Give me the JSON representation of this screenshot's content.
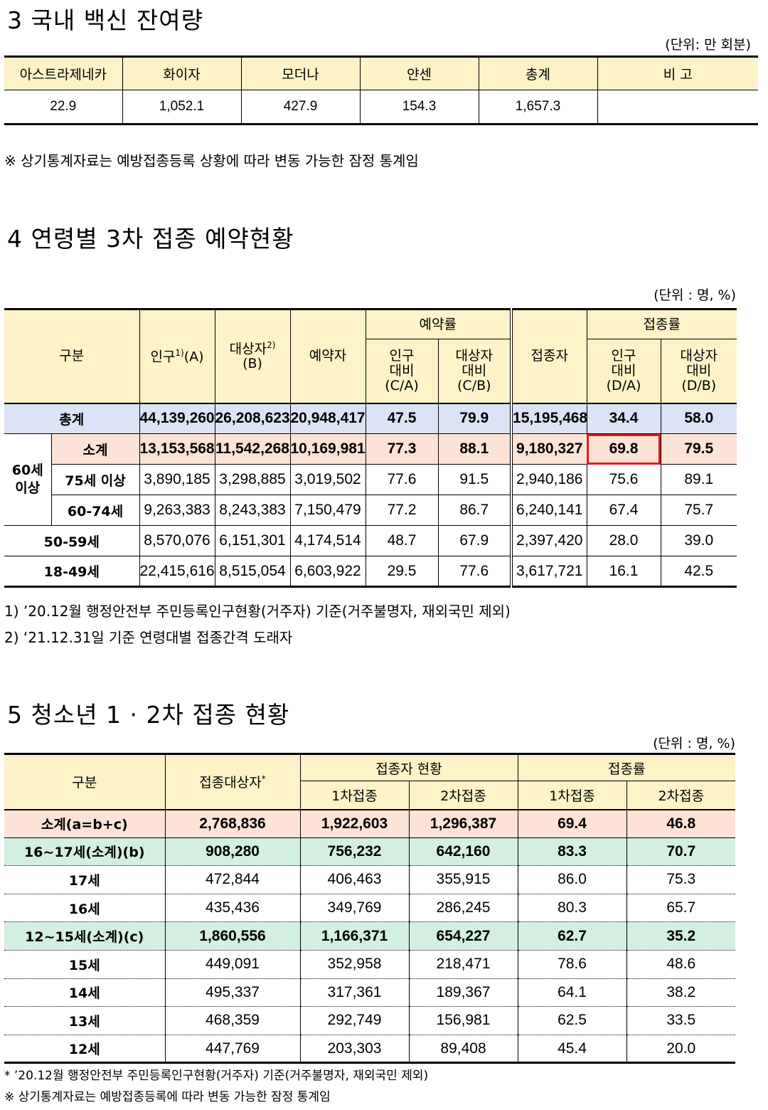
{
  "sec3": {
    "title": "3  국내 백신 잔여량",
    "unit": "(단위: 만 회분)",
    "headers": [
      "아스트라제네카",
      "화이자",
      "모더나",
      "얀센",
      "총계",
      "비 고"
    ],
    "values": [
      "22.9",
      "1,052.1",
      "427.9",
      "154.3",
      "1,657.3",
      ""
    ],
    "note": "※ 상기통계자료는 예방접종등록 상황에 따라 변동 가능한 잠정 통계임"
  },
  "sec4": {
    "title": "4  연령별 3차 접종 예약현황",
    "unit": "(단위 : 명, %)",
    "headers": {
      "gubun": "구분",
      "pop": "인구",
      "pop_sup": "1)",
      "pop_suffix": "(A)",
      "target": "대상자",
      "target_sup": "2)",
      "target_suffix": "(B)",
      "reserved": "예약자",
      "resv_rate": "예약률",
      "resv_pop_1": "인구",
      "resv_pop_2": "대비",
      "resv_pop_3": "(C/A)",
      "resv_tgt_1": "대상자",
      "resv_tgt_2": "대비",
      "resv_tgt_3": "(C/B)",
      "vaccinated": "접종자",
      "vax_rate": "접종률",
      "vax_pop_1": "인구",
      "vax_pop_2": "대비",
      "vax_pop_3": "(D/A)",
      "vax_tgt_1": "대상자",
      "vax_tgt_2": "대비",
      "vax_tgt_3": "(D/B)"
    },
    "group_60_1": "60세",
    "group_60_2": "이상",
    "rows": [
      {
        "label": "총계",
        "v": [
          "44,139,260",
          "26,208,623",
          "20,948,417",
          "47.5",
          "79.9",
          "15,195,468",
          "34.4",
          "58.0"
        ]
      },
      {
        "label": "소계",
        "v": [
          "13,153,568",
          "11,542,268",
          "10,169,981",
          "77.3",
          "88.1",
          "9,180,327",
          "69.8",
          "79.5"
        ]
      },
      {
        "label": "75세 이상",
        "v": [
          "3,890,185",
          "3,298,885",
          "3,019,502",
          "77.6",
          "91.5",
          "2,940,186",
          "75.6",
          "89.1"
        ]
      },
      {
        "label": "60-74세",
        "v": [
          "9,263,383",
          "8,243,383",
          "7,150,479",
          "77.2",
          "86.7",
          "6,240,141",
          "67.4",
          "75.7"
        ]
      },
      {
        "label": "50-59세",
        "v": [
          "8,570,076",
          "6,151,301",
          "4,174,514",
          "48.7",
          "67.9",
          "2,397,420",
          "28.0",
          "39.0"
        ]
      },
      {
        "label": "18-49세",
        "v": [
          "22,415,616",
          "8,515,054",
          "6,603,922",
          "29.5",
          "77.6",
          "3,617,721",
          "16.1",
          "42.5"
        ]
      }
    ],
    "note1": "1) ’20.12월 행정안전부 주민등록인구현황(거주자) 기준(거주불명자, 재외국민 제외)",
    "note2": "2) ‘21.12.31일 기준 연령대별 접종간격 도래자"
  },
  "sec5": {
    "title": "5  청소년 1 · 2차 접종 현황",
    "unit": "(단위 : 명, %)",
    "headers": {
      "gubun": "구분",
      "target": "접종대상자",
      "target_sup": "*",
      "status": "접종자 현황",
      "rate": "접종률",
      "d1": "1차접종",
      "d2": "2차접종",
      "r1": "1차접종",
      "r2": "2차접종"
    },
    "rows": [
      {
        "label": "소계(a=b+c)",
        "v": [
          "2,768,836",
          "1,922,603",
          "1,296,387",
          "69.4",
          "46.8"
        ]
      },
      {
        "label": "16~17세(소계)(b)",
        "v": [
          "908,280",
          "756,232",
          "642,160",
          "83.3",
          "70.7"
        ]
      },
      {
        "label": "17세",
        "v": [
          "472,844",
          "406,463",
          "355,915",
          "86.0",
          "75.3"
        ]
      },
      {
        "label": "16세",
        "v": [
          "435,436",
          "349,769",
          "286,245",
          "80.3",
          "65.7"
        ]
      },
      {
        "label": "12~15세(소계)(c)",
        "v": [
          "1,860,556",
          "1,166,371",
          "654,227",
          "62.7",
          "35.2"
        ]
      },
      {
        "label": "15세",
        "v": [
          "449,091",
          "352,958",
          "218,471",
          "78.6",
          "48.6"
        ]
      },
      {
        "label": "14세",
        "v": [
          "495,337",
          "317,361",
          "189,367",
          "64.1",
          "38.2"
        ]
      },
      {
        "label": "13세",
        "v": [
          "468,359",
          "292,749",
          "156,981",
          "62.5",
          "33.5"
        ]
      },
      {
        "label": "12세",
        "v": [
          "447,769",
          "203,303",
          "89,408",
          "45.4",
          "20.0"
        ]
      }
    ],
    "note1": "* ’20.12월 행정안전부 주민등록인구현황(거주자) 기준(거주불명자, 재외국민 제외)",
    "note2": "※ 상기통계자료는 예방접종등록에 따라 변동 가능한 잠정 통계임"
  }
}
